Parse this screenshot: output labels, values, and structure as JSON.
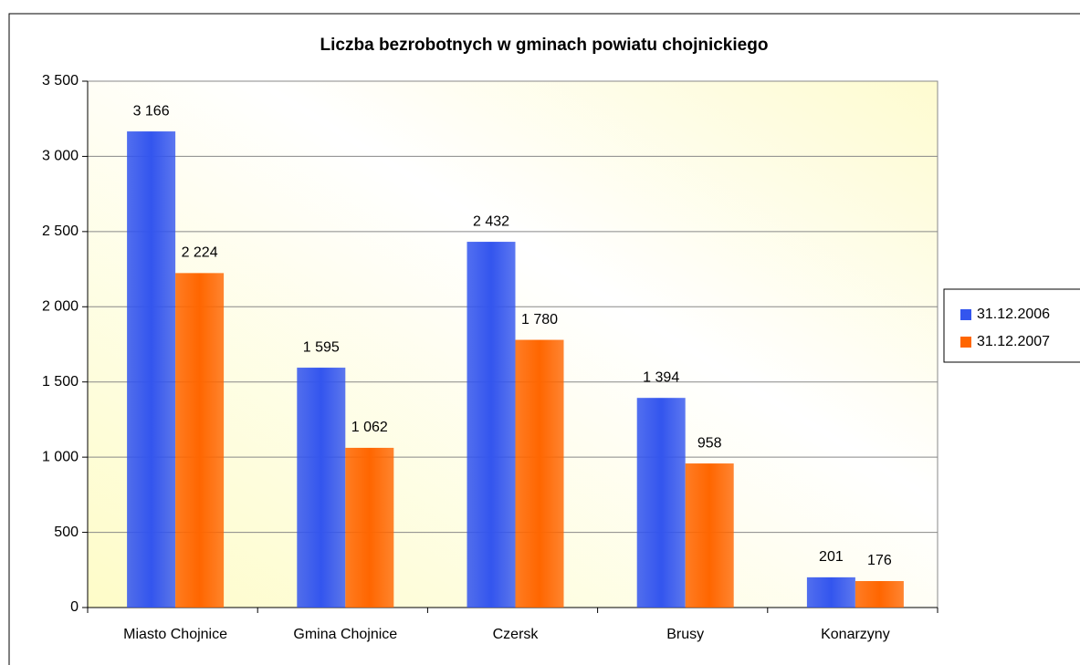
{
  "chart_data": {
    "type": "bar",
    "title": "Liczba bezrobotnych w gminach powiatu chojnickiego",
    "categories": [
      "Miasto Chojnice",
      "Gmina Chojnice",
      "Czersk",
      "Brusy",
      "Konarzyny"
    ],
    "series": [
      {
        "name": "31.12.2006",
        "color": "#3355ee",
        "values": [
          3166,
          1595,
          2432,
          1394,
          201
        ],
        "value_labels": [
          "3 166",
          "1 595",
          "2 432",
          "1 394",
          "201"
        ]
      },
      {
        "name": "31.12.2007",
        "color": "#ff6600",
        "values": [
          2224,
          1062,
          1780,
          958,
          176
        ],
        "value_labels": [
          "2 224",
          "1 062",
          "1 780",
          "958",
          "176"
        ]
      }
    ],
    "ylim": [
      0,
      3500
    ],
    "yticks": [
      0,
      500,
      {
        "value": 1000,
        "label": "1 000"
      },
      {
        "value": 1500,
        "label": "1 500"
      },
      {
        "value": 2000,
        "label": "2 000"
      },
      {
        "value": 2500,
        "label": "2 500"
      },
      {
        "value": 3000,
        "label": "3 000"
      },
      {
        "value": 3500,
        "label": "3 500"
      }
    ],
    "grid": true,
    "legend": "right"
  }
}
